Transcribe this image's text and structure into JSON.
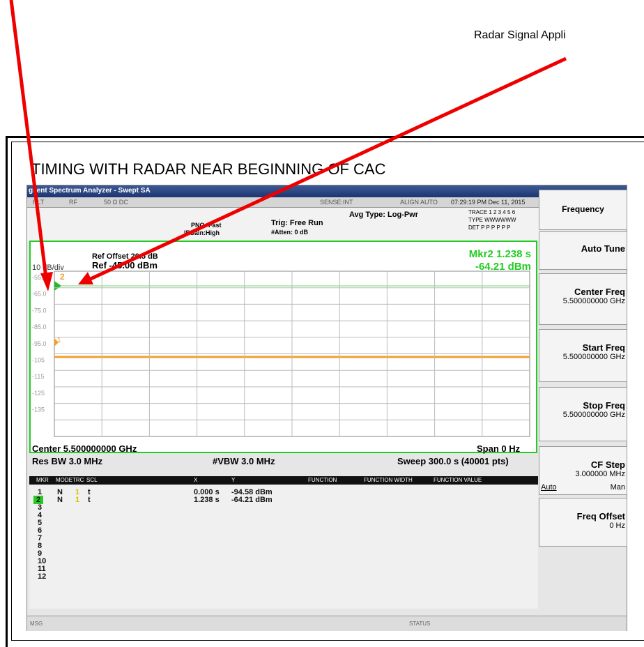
{
  "annotation": "Radar Signal Appli",
  "title": "TIMING WITH RADAR NEAR BEGINNING OF CAC",
  "window_title": "gilent Spectrum Analyzer - Swept SA",
  "status_bar": [
    "RLT",
    "RF",
    "50 Ω  DC",
    "SENSE:INT",
    "ALIGN AUTO",
    "07:29:19 PM Dec 11, 2015"
  ],
  "settings": {
    "pno": "PNO: Fast",
    "if_gain": "IFGain:High",
    "trig": "Trig: Free Run",
    "atten": "#Atten: 0 dB",
    "avg_type": "Avg Type: Log-Pwr",
    "trace": "TRACE 1 2 3 4 5 6",
    "type": "TYPE WWWWWW",
    "det": "DET P P P P P P"
  },
  "graph": {
    "ref_offset": "Ref Offset 20.5 dB",
    "ref_level": "Ref -45.00 dBm",
    "scale": "10 dB/div",
    "marker_readout": [
      "Mkr2 1.238 s",
      "-64.21 dBm"
    ],
    "y_labels": [
      "-55.0",
      "-65.0",
      "-75.0",
      "-85.0",
      "-95.0",
      "-105",
      "-115",
      "-125",
      "-135"
    ],
    "markers": [
      "2",
      "1"
    ]
  },
  "footer": {
    "center": "Center 5.500000000 GHz",
    "span": "Span 0 Hz",
    "res_bw": "Res BW 3.0 MHz",
    "vbw": "#VBW 3.0 MHz",
    "sweep": "Sweep  300.0 s (40001 pts)"
  },
  "marker_table": {
    "columns": [
      "MKR",
      "MODE",
      "TRC",
      "SCL",
      "X",
      "Y",
      "FUNCTION",
      "FUNCTION WIDTH",
      "FUNCTION VALUE"
    ],
    "rows": [
      [
        "1",
        "N",
        "1",
        "t",
        "0.000 s",
        "-94.58 dBm"
      ],
      [
        "2",
        "N",
        "1",
        "t",
        "1.238 s",
        "-64.21 dBm"
      ],
      [
        "3"
      ],
      [
        "4"
      ],
      [
        "5"
      ],
      [
        "6"
      ],
      [
        "7"
      ],
      [
        "8"
      ],
      [
        "9"
      ],
      [
        "10"
      ],
      [
        "11"
      ],
      [
        "12"
      ]
    ]
  },
  "message_bar": {
    "msg": "MSG",
    "status": "STATUS"
  },
  "softkeys": {
    "menu": "Frequency",
    "items": [
      {
        "label": "Auto Tune"
      },
      {
        "label": "Center Freq",
        "value": "5.500000000 GHz"
      },
      {
        "label": "Start Freq",
        "value": "5.500000000 GHz"
      },
      {
        "label": "Stop Freq",
        "value": "5.500000000 GHz"
      },
      {
        "label": "CF Step",
        "value": "3.000000 MHz",
        "options": [
          "Auto",
          "Man"
        ]
      },
      {
        "label": "Freq Offset",
        "value": "0 Hz"
      }
    ]
  }
}
